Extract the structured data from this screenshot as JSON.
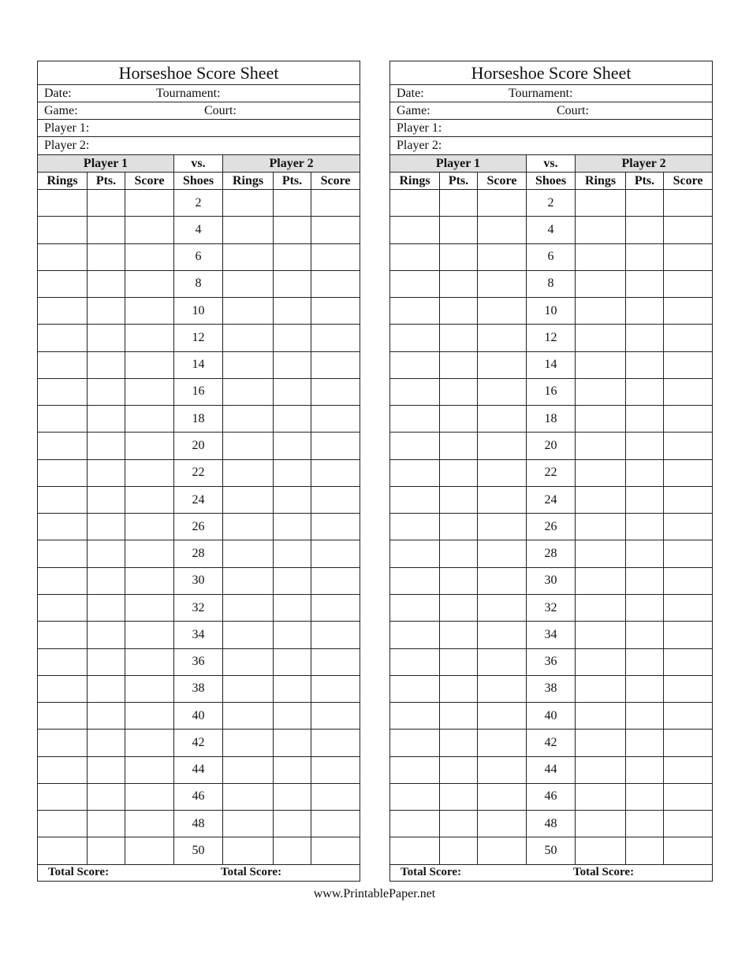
{
  "sheets": [
    {
      "title": "Horseshoe Score Sheet",
      "date_label": "Date:",
      "tournament_label": "Tournament:",
      "game_label": "Game:",
      "court_label": "Court:",
      "player1_label": "Player 1:",
      "player2_label": "Player 2:",
      "band": {
        "player1": "Player 1",
        "vs": "vs.",
        "player2": "Player 2"
      },
      "columns": [
        "Rings",
        "Pts.",
        "Score",
        "Shoes",
        "Rings",
        "Pts.",
        "Score"
      ],
      "total_label_1": "Total Score:",
      "total_label_2": "Total Score:"
    },
    {
      "title": "Horseshoe Score Sheet",
      "date_label": "Date:",
      "tournament_label": "Tournament:",
      "game_label": "Game:",
      "court_label": "Court:",
      "player1_label": "Player 1:",
      "player2_label": "Player 2:",
      "band": {
        "player1": "Player 1",
        "vs": "vs.",
        "player2": "Player 2"
      },
      "columns": [
        "Rings",
        "Pts.",
        "Score",
        "Shoes",
        "Rings",
        "Pts.",
        "Score"
      ],
      "total_label_1": "Total Score:",
      "total_label_2": "Total Score:"
    }
  ],
  "shoes": [
    "2",
    "4",
    "6",
    "8",
    "10",
    "12",
    "14",
    "16",
    "18",
    "20",
    "22",
    "24",
    "26",
    "28",
    "30",
    "32",
    "34",
    "36",
    "38",
    "40",
    "42",
    "44",
    "46",
    "48",
    "50"
  ],
  "footer": "www.PrintablePaper.net"
}
